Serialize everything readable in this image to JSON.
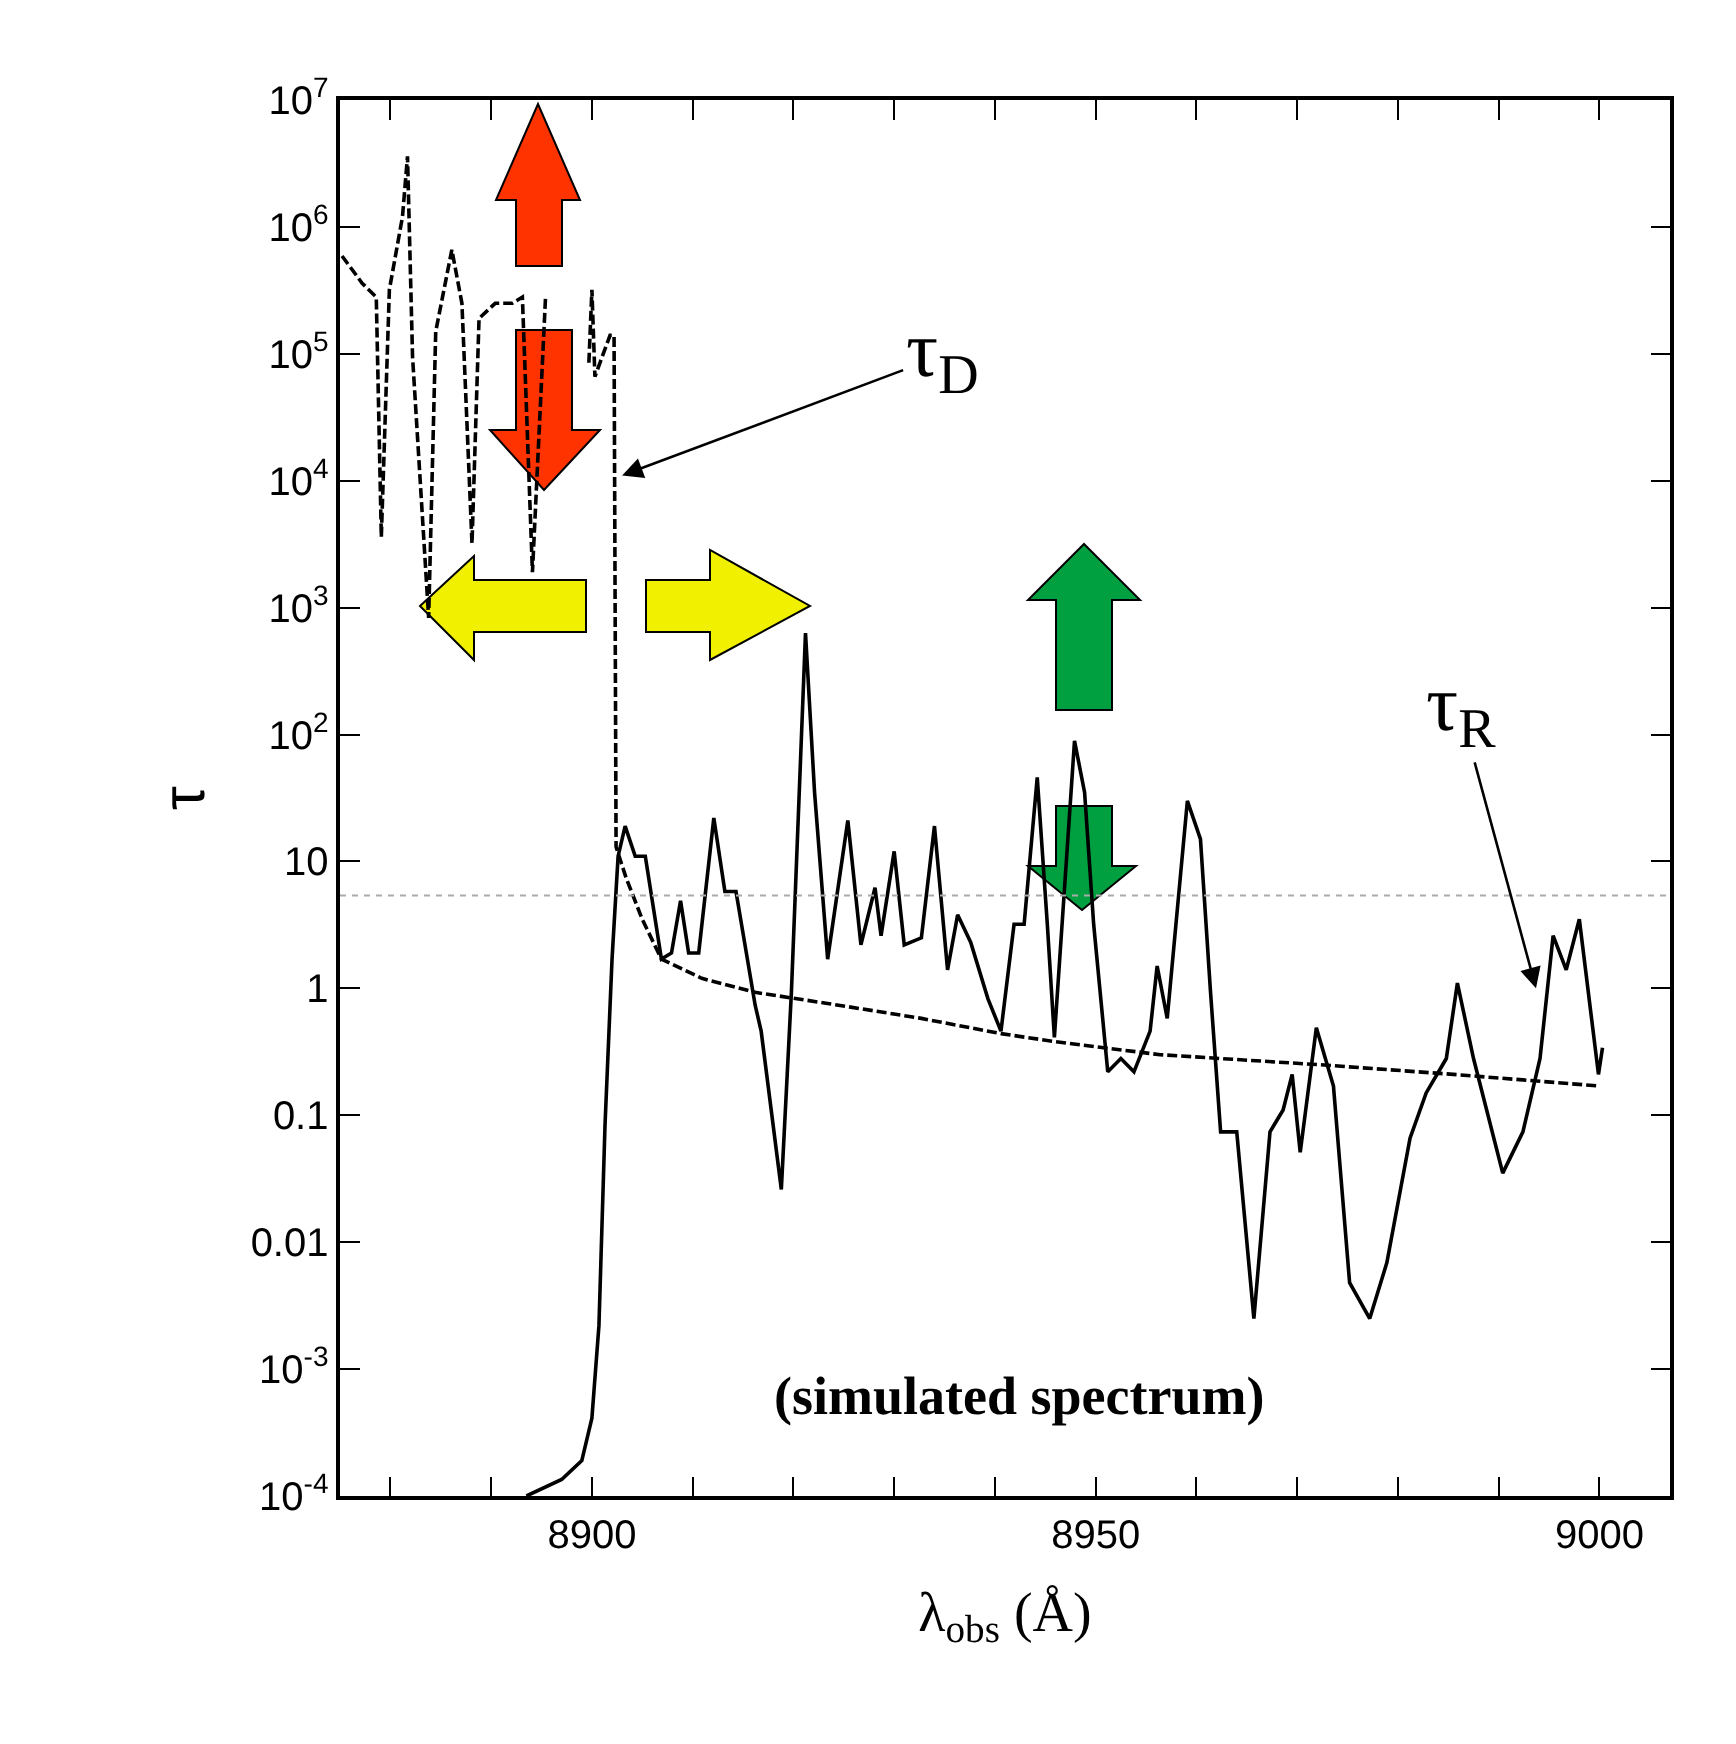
{
  "chart_data": {
    "type": "line",
    "xlabel": "λ$_{obs}$ (Å)",
    "ylabel": "τ",
    "log": "y",
    "xlim": [
      8875,
      9007
    ],
    "xticks": [
      {
        "value": 8880,
        "label": null
      },
      {
        "value": 8890,
        "label": null
      },
      8900,
      {
        "value": 8910,
        "label": null
      },
      {
        "value": 8920,
        "label": null
      },
      {
        "value": 8930,
        "label": null
      },
      {
        "value": 8940,
        "label": null
      },
      8950,
      {
        "value": 8960,
        "label": null
      },
      {
        "value": 8970,
        "label": null
      },
      {
        "value": 8980,
        "label": null
      },
      {
        "value": 8990,
        "label": null
      },
      9000
    ],
    "ylim": [
      0.0001,
      10000000
    ],
    "yticks": [
      {
        "value": 10000000,
        "label": "10$^{7}$"
      },
      {
        "value": 1000000,
        "label": "10$^{6}$"
      },
      {
        "value": 100000,
        "label": "10$^{5}$"
      },
      {
        "value": 10000,
        "label": "10$^{4}$"
      },
      {
        "value": 1000,
        "label": "10$^{3}$"
      },
      {
        "value": 100,
        "label": "10$^{2}$"
      },
      10,
      1,
      0.1,
      0.01,
      {
        "value": 0.001,
        "label": "10$^{-3}$"
      },
      {
        "value": 0.0001,
        "label": "10$^{-4}$"
      }
    ],
    "series": [
      {
        "color": "#000000",
        "line_style": "solid",
        "x": [
          8893.5,
          8897,
          8899,
          8900,
          8900.7,
          8901.3,
          8902,
          8902.6,
          8903.3,
          8904.3,
          8905.3,
          8906.9,
          8907.9,
          8908.8,
          8909.6,
          8910.6,
          8912.1,
          8913.2,
          8914.3,
          8916.2,
          8916.8,
          8918.8,
          8919.8,
          8921.2,
          8922.1,
          8923.4,
          8925.4,
          8926.7,
          8928.1,
          8928.7,
          8930,
          8931,
          8932.7,
          8934,
          8935.3,
          8936.3,
          8937.6,
          8939.3,
          8940.6,
          8941.9,
          8942.9,
          8944.2,
          8945.2,
          8945.9,
          8947.9,
          8948.9,
          8949.8,
          8951.2,
          8952.5,
          8953.8,
          8955.4,
          8956.1,
          8957.1,
          8959.1,
          8960.4,
          8961.4,
          8962.4,
          8964,
          8965.7,
          8967.3,
          8968.6,
          8969.5,
          8970.3,
          8971.9,
          8973.6,
          8975.2,
          8977.2,
          8978.9,
          8981.2,
          8982.8,
          8984.8,
          8985.9,
          8987.5,
          8990.4,
          8992.4,
          8994.1,
          8995.4,
          8996.7,
          8998,
          8999.9,
          9000.3
        ],
        "values": [
          0.0001,
          0.000135,
          0.00019,
          0.00041,
          0.0022,
          0.083,
          1.7,
          11,
          19,
          11,
          11,
          1.7,
          1.9,
          4.9,
          1.9,
          1.9,
          22,
          5.8,
          5.8,
          0.74,
          0.46,
          0.026,
          0.93,
          630,
          35,
          1.7,
          21,
          2.2,
          6.2,
          2.6,
          12,
          2.2,
          2.5,
          19,
          1.4,
          3.8,
          2.3,
          0.83,
          0.46,
          3.2,
          3.2,
          46,
          3.2,
          0.41,
          89,
          35,
          3.2,
          0.22,
          0.28,
          0.22,
          0.46,
          1.5,
          0.58,
          30,
          15,
          0.93,
          0.074,
          0.074,
          0.0025,
          0.074,
          0.11,
          0.21,
          0.051,
          0.49,
          0.17,
          0.0048,
          0.0025,
          0.0069,
          0.066,
          0.15,
          0.28,
          1.1,
          0.28,
          0.035,
          0.074,
          0.28,
          2.6,
          1.4,
          3.5,
          0.21,
          0.34
        ]
      },
      {
        "color": "#000000",
        "line_style": "dashed",
        "x": [
          8875.2,
          8877.2,
          8878.6,
          8879.1,
          8879.9,
          8881.2,
          8881.7,
          8882.2,
          8883.8,
          8884.5,
          8886.1,
          8887.1,
          8888.1,
          8888.8,
          8890.4,
          8892.1,
          8893.1,
          8894.1,
          8895.4,
          8896,
          8897.7,
          8899.7,
          8900,
          8900.3,
          8901.8,
          8902.2,
          8902.4,
          8903.4,
          8905,
          8906.9,
          8910.9,
          8916.2,
          8923.4,
          8932.7,
          8940.6,
          8946,
          8956.4,
          8972.3,
          8985.5,
          9000
        ],
        "values": [
          590000,
          360000,
          280000,
          3600,
          320000,
          1200000,
          3600000,
          95000,
          830,
          150000,
          660000,
          250000,
          3200,
          190000,
          250000,
          250000,
          280000,
          1900,
          280000,
          null,
          null,
          85000,
          320000,
          66000,
          140000,
          140000,
          13,
          7.4,
          3.5,
          1.7,
          1.2,
          0.93,
          0.76,
          0.58,
          0.44,
          0.38,
          0.3,
          0.25,
          0.21,
          0.17
        ]
      }
    ],
    "ref_lines": [
      {
        "axis": "y",
        "value": 5.4,
        "color": "#aaaaaa",
        "line_style": "dotted"
      }
    ],
    "annotations": [
      {
        "text": "τ$_{D}$",
        "x": 8903,
        "y": 11000
      },
      {
        "text": "τ$_{R}$",
        "x": 8993.7,
        "y": 1
      },
      "(simulated spectrum)"
    ]
  }
}
